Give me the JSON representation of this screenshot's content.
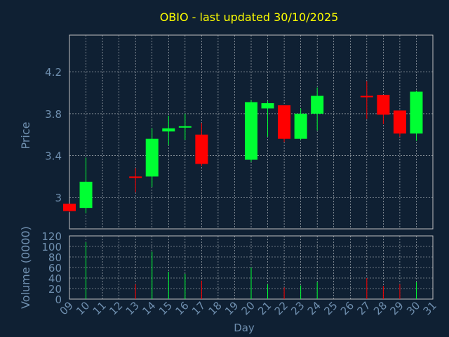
{
  "chart_data": {
    "type": "candlestick",
    "title": "OBIO - last updated 30/10/2025",
    "price_panel": {
      "ylabel": "Price",
      "ylim": [
        2.7,
        4.55
      ],
      "yticks": [
        "3",
        "3.4",
        "3.8",
        "4.2"
      ],
      "ytick_values": [
        3.0,
        3.4,
        3.8,
        4.2
      ]
    },
    "volume_panel": {
      "ylabel": "Volume (0000)",
      "ylim": [
        0,
        120
      ],
      "yticks": [
        "0",
        "20",
        "40",
        "60",
        "80",
        "100",
        "120"
      ],
      "ytick_values": [
        0,
        20,
        40,
        60,
        80,
        100,
        120
      ]
    },
    "xlabel": "Day",
    "xticks": [
      "09",
      "10",
      "11",
      "12",
      "13",
      "14",
      "15",
      "16",
      "17",
      "18",
      "19",
      "20",
      "21",
      "22",
      "23",
      "24",
      "25",
      "26",
      "27",
      "28",
      "29",
      "30",
      "31"
    ],
    "candles": [
      {
        "day": 9,
        "open": 2.94,
        "high": 2.94,
        "low": 2.86,
        "close": 2.87,
        "volume": 0
      },
      {
        "day": 10,
        "open": 2.9,
        "high": 3.38,
        "low": 2.85,
        "close": 3.15,
        "volume": 108
      },
      {
        "day": 13,
        "open": 3.2,
        "high": 3.28,
        "low": 3.05,
        "close": 3.19,
        "volume": 28
      },
      {
        "day": 14,
        "open": 3.2,
        "high": 3.66,
        "low": 3.1,
        "close": 3.56,
        "volume": 90
      },
      {
        "day": 15,
        "open": 3.63,
        "high": 3.78,
        "low": 3.5,
        "close": 3.66,
        "volume": 52
      },
      {
        "day": 16,
        "open": 3.67,
        "high": 3.8,
        "low": 3.55,
        "close": 3.68,
        "volume": 48
      },
      {
        "day": 17,
        "open": 3.6,
        "high": 3.71,
        "low": 3.3,
        "close": 3.32,
        "volume": 35
      },
      {
        "day": 20,
        "open": 3.36,
        "high": 3.93,
        "low": 3.34,
        "close": 3.91,
        "volume": 60
      },
      {
        "day": 21,
        "open": 3.85,
        "high": 3.92,
        "low": 3.58,
        "close": 3.9,
        "volume": 28
      },
      {
        "day": 22,
        "open": 3.88,
        "high": 3.88,
        "low": 3.53,
        "close": 3.56,
        "volume": 22
      },
      {
        "day": 23,
        "open": 3.56,
        "high": 3.85,
        "low": 3.55,
        "close": 3.8,
        "volume": 26
      },
      {
        "day": 24,
        "open": 3.8,
        "high": 4.05,
        "low": 3.64,
        "close": 3.97,
        "volume": 32
      },
      {
        "day": 27,
        "open": 3.97,
        "high": 4.11,
        "low": 3.75,
        "close": 3.96,
        "volume": 40
      },
      {
        "day": 28,
        "open": 3.98,
        "high": 3.98,
        "low": 3.7,
        "close": 3.79,
        "volume": 25
      },
      {
        "day": 29,
        "open": 3.83,
        "high": 3.83,
        "low": 3.58,
        "close": 3.61,
        "volume": 28
      },
      {
        "day": 30,
        "open": 3.61,
        "high": 4.02,
        "low": 3.54,
        "close": 4.01,
        "volume": 32
      }
    ],
    "grid": true,
    "colors": {
      "background": "#0f2033",
      "plot_background": "#0f2033",
      "up": "#00ff33",
      "down": "#ff0000",
      "title": "#ffff00",
      "axis_text": "#6f8faf",
      "grid": "#ffffff",
      "axis_line": "#c0c0c0"
    }
  }
}
